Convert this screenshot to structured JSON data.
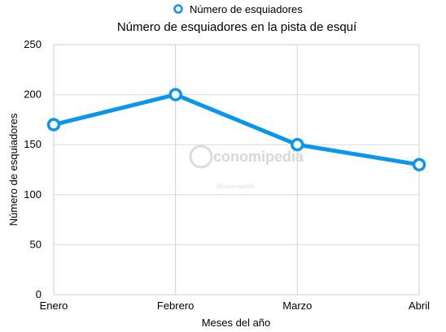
{
  "chart_data": {
    "type": "line",
    "title": "Número de esquiadores en la pista de esquí",
    "xlabel": "Meses del año",
    "ylabel": "Número de esquiadores",
    "categories": [
      "Enero",
      "Febrero",
      "Marzo",
      "Abril"
    ],
    "series": [
      {
        "name": "Número de esquiadores",
        "values": [
          170,
          200,
          150,
          130
        ],
        "color": "#0b96ee"
      }
    ],
    "ylim": [
      0,
      250
    ],
    "yticks": [
      0,
      50,
      100,
      150,
      200,
      250
    ],
    "grid": true,
    "legend_position": "top-center",
    "watermark": "conomipedia",
    "watermark_small": "@conomipedia"
  }
}
